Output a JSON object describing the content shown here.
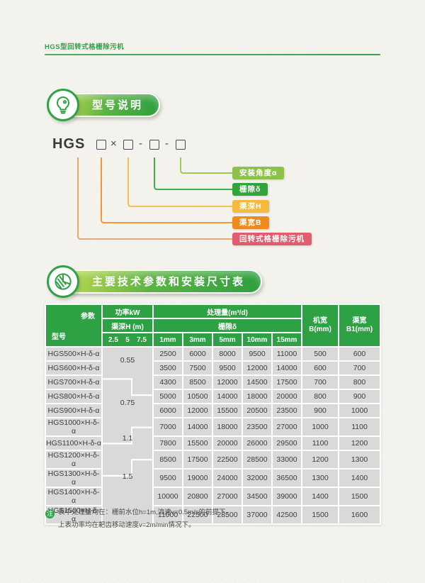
{
  "colors": {
    "page_bg": "#f4f3ee",
    "brand_green": "#2fa246",
    "header_green": "#2ea145",
    "badge_grad_start": "#c3da52",
    "badge_grad_mid": "#5cb344",
    "badge_grad_end": "#2f9e3f",
    "cell_gray": "#d9d9d9",
    "model_gray": "#dddddd",
    "power_gray": "#e4e4e4",
    "side_gray": "#dcdcdc",
    "text_dark": "#3c3c3c"
  },
  "header": {
    "title": "HGS型回转式格栅除污机"
  },
  "model": {
    "badge": "型号说明",
    "code_prefix": "HGS",
    "code_times": "×",
    "code_dash": "-",
    "labels": [
      {
        "text": "安装角度α",
        "bg": "#8dc14b",
        "line": "#a2c94f"
      },
      {
        "text": "栅隙δ",
        "bg": "#2fa53c",
        "line": "#3fae4c"
      },
      {
        "text": "渠深H",
        "bg": "#f5b93b",
        "line": "#f4c24f"
      },
      {
        "text": "渠宽B",
        "bg": "#ef8a1f",
        "line": "#f2973b"
      },
      {
        "text": "回转式格栅除污机",
        "bg": "#e05c6e",
        "line": "#e8a872"
      }
    ]
  },
  "specs": {
    "badge": "主要技术参数和安装尺寸表"
  },
  "table": {
    "corner_top": "参数",
    "corner_bottom": "型号",
    "h_power": "功率kW",
    "h_depth": "渠深H (m)",
    "depths": [
      "2.5",
      "5",
      "7.5"
    ],
    "h_throughput": "处理量(m³/d)",
    "h_gap": "栅隙δ",
    "gaps": [
      "1mm",
      "3mm",
      "5mm",
      "10mm",
      "15mm"
    ],
    "h_machine": [
      "机宽",
      "B(mm)"
    ],
    "h_channel": [
      "渠宽",
      "B1(mm)"
    ],
    "powers": [
      "0.55",
      "0.75",
      "1.1",
      "1.5"
    ],
    "rows": [
      {
        "model": "HGS500×H-δ-α",
        "v": [
          2500,
          6000,
          8000,
          9500,
          11000
        ],
        "b": 500,
        "b1": 600
      },
      {
        "model": "HGS600×H-δ-α",
        "v": [
          3500,
          7500,
          9500,
          12000,
          14000
        ],
        "b": 600,
        "b1": 700
      },
      {
        "model": "HGS700×H-δ-α",
        "v": [
          4300,
          8500,
          12000,
          14500,
          17500
        ],
        "b": 700,
        "b1": 800
      },
      {
        "model": "HGS800×H-δ-α",
        "v": [
          5000,
          10500,
          14000,
          18000,
          20000
        ],
        "b": 800,
        "b1": 900
      },
      {
        "model": "HGS900×H-δ-α",
        "v": [
          6000,
          12000,
          15500,
          20500,
          23500
        ],
        "b": 900,
        "b1": 1000
      },
      {
        "model": "HGS1000×H-δ-α",
        "v": [
          7000,
          14000,
          18000,
          23500,
          27000
        ],
        "b": 1000,
        "b1": 1100
      },
      {
        "model": "HGS1100×H-δ-α",
        "v": [
          7800,
          15500,
          20000,
          26000,
          29500
        ],
        "b": 1100,
        "b1": 1200
      },
      {
        "model": "HGS1200×H-δ-α",
        "v": [
          8500,
          17500,
          22500,
          28500,
          33000
        ],
        "b": 1200,
        "b1": 1300
      },
      {
        "model": "HGS1300×H-δ-α",
        "v": [
          9500,
          19000,
          24000,
          32000,
          36500
        ],
        "b": 1300,
        "b1": 1400
      },
      {
        "model": "HGS1400×H-δ-α",
        "v": [
          10000,
          20800,
          27000,
          34500,
          39000
        ],
        "b": 1400,
        "b1": 1500
      },
      {
        "model": "HGS1500×H-δ-α",
        "v": [
          11000,
          22500,
          28500,
          37000,
          42500
        ],
        "b": 1500,
        "b1": 1600
      }
    ]
  },
  "notes": {
    "tag": "注",
    "line1": "表中处理量均在：栅前水位h=1m,流速v=0.5m/s的前提下。",
    "line2": "上表功率均在耙齿移动速度v=2m/min情况下。"
  }
}
